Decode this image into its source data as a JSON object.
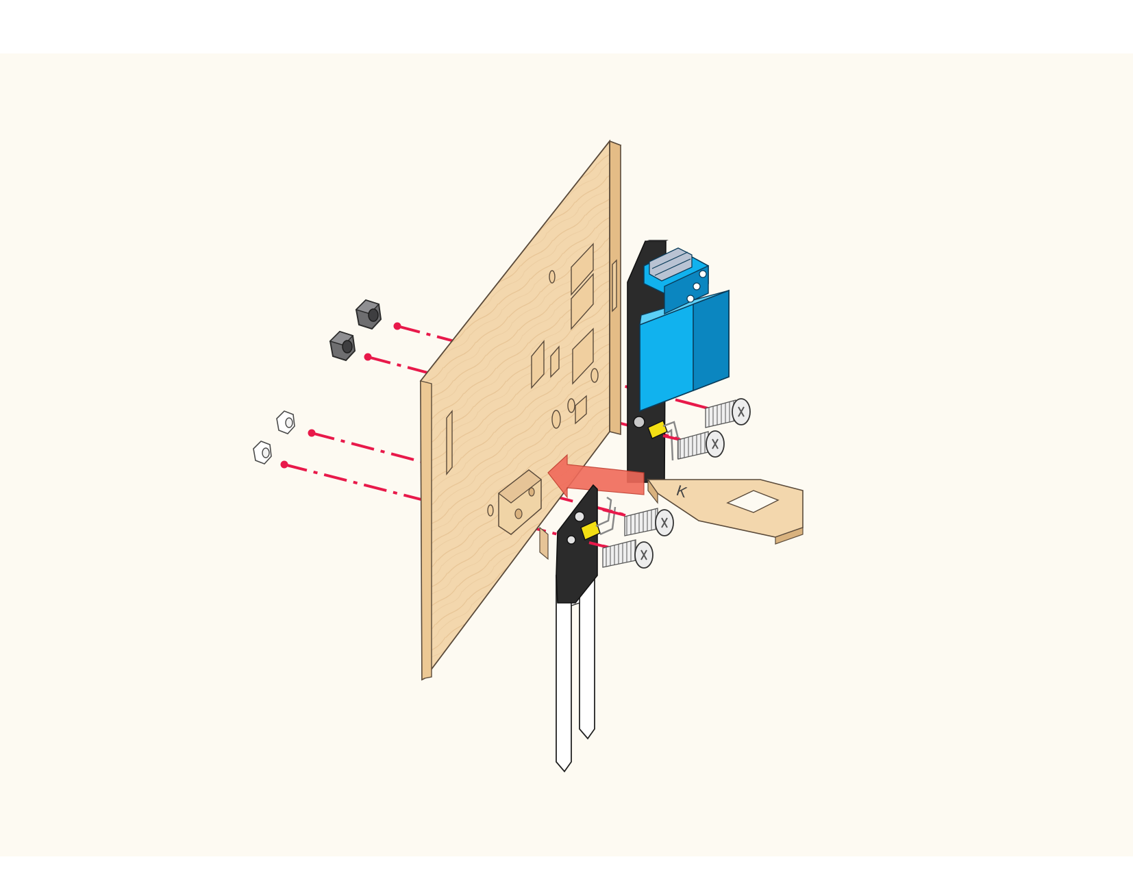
{
  "diagram": {
    "type": "exploded-assembly",
    "board_marking": "K",
    "colors": {
      "canvas_bg": "#fdfaf2",
      "wood": "#f3d7ad",
      "wood_edge": "#d9b27e",
      "wood_grain": "#e3bd8b",
      "module_blue": "#11b2ee",
      "module_blue_dark": "#0b86c0",
      "terminal_grey": "#b9c3d3",
      "pcb_black": "#2b2b2b",
      "connector_yellow": "#f3df14",
      "guide_red": "#e8194a",
      "arrow_red": "#f06a5a",
      "nut_dark": "#6e6e70",
      "nut_light": "#ffffff",
      "screw_metal": "#eaeaea"
    },
    "parts": [
      {
        "id": "base-panel",
        "material": "plywood"
      },
      {
        "id": "relay-module",
        "color": "blue"
      },
      {
        "id": "soil-moisture-probe",
        "color": "black-white"
      },
      {
        "id": "wooden-clip",
        "marking": "K"
      },
      {
        "id": "small-wooden-block"
      },
      {
        "id": "large-hex-nut",
        "count": 2
      },
      {
        "id": "small-hex-nut",
        "count": 2
      },
      {
        "id": "screw",
        "count": 4
      }
    ]
  }
}
